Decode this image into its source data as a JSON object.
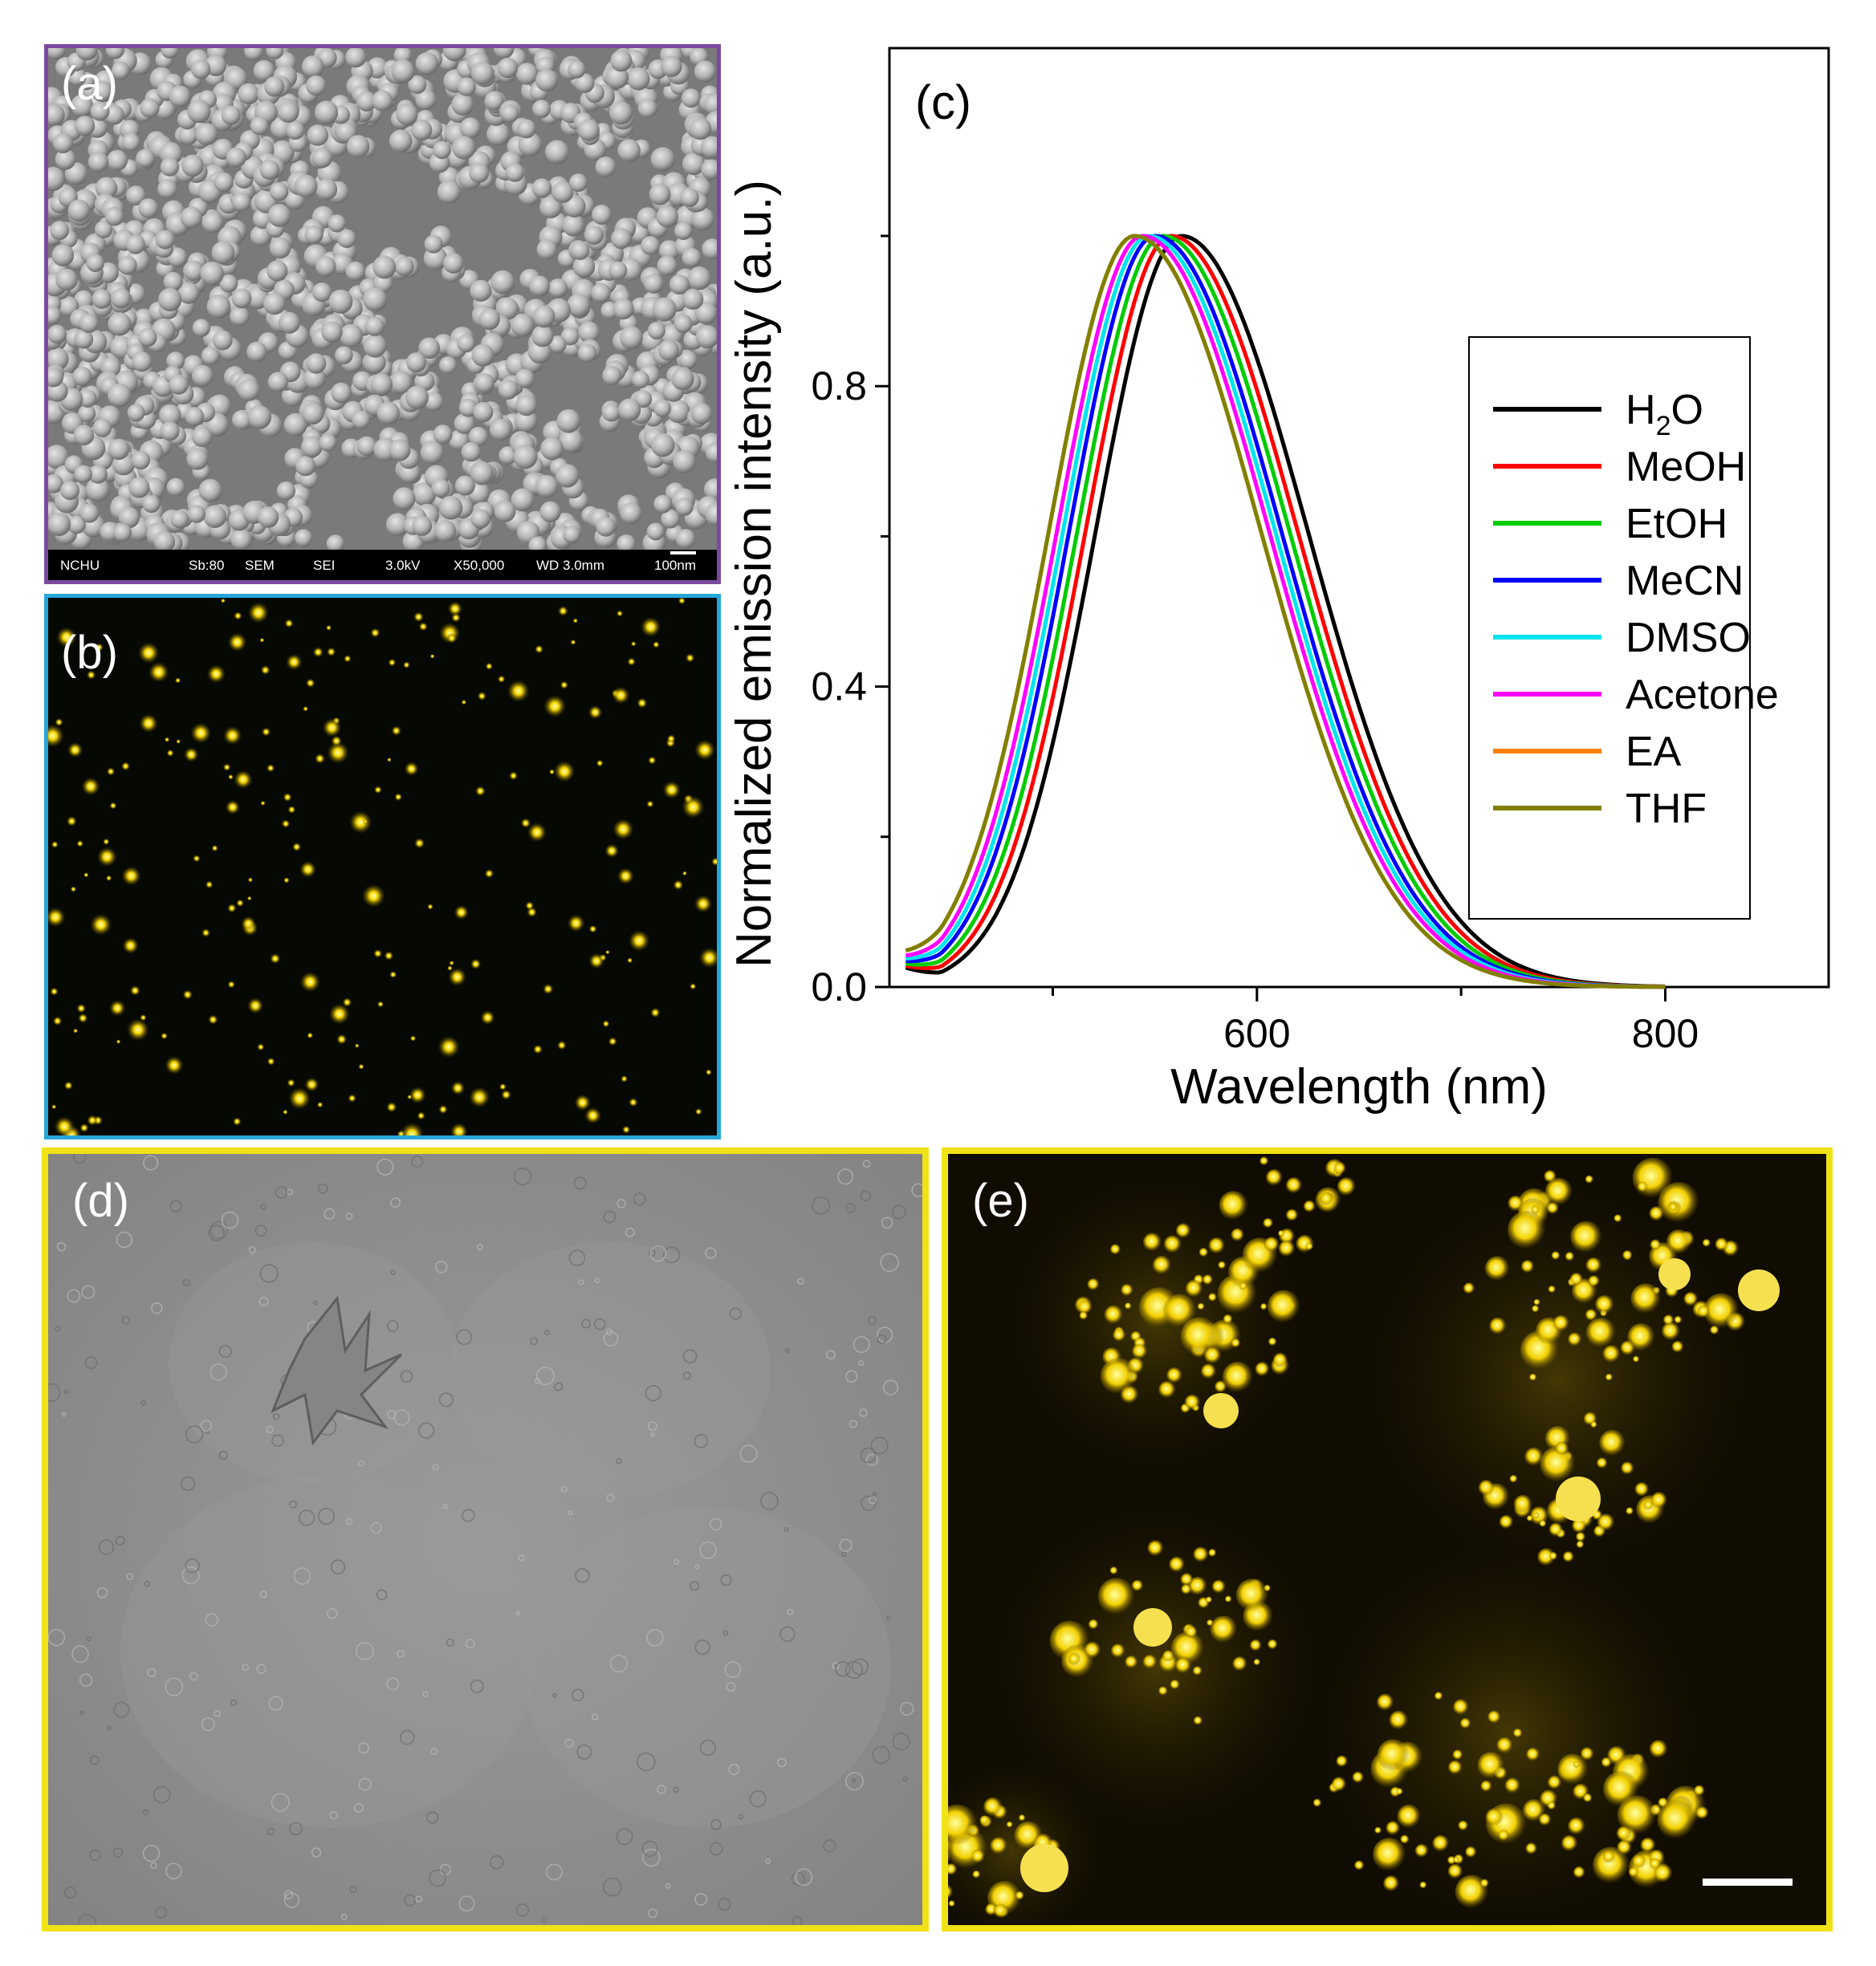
{
  "panels": {
    "a": {
      "label": "(a)",
      "sem_bar": {
        "lab": "NCHU",
        "sb": "Sb:80",
        "mode": "SEM",
        "detector": "SEI",
        "voltage": "3.0kV",
        "magnification": "X50,000",
        "wd": "WD 3.0mm",
        "scale": "100nm"
      }
    },
    "b": {
      "label": "(b)"
    },
    "c": {
      "label": "(c)"
    },
    "d": {
      "label": "(d)"
    },
    "e": {
      "label": "(e)"
    }
  },
  "colors": {
    "panel_a_border": "#7b4a9e",
    "panel_b_border": "#27a6d9",
    "panel_de_border": "#f0e215"
  },
  "chart_data": {
    "type": "line",
    "title": "",
    "xlabel": "Wavelength (nm)",
    "ylabel": "Normalized emission intensity (a.u.)",
    "xlim": [
      420,
      880
    ],
    "ylim": [
      0.0,
      1.0
    ],
    "xticks": [
      600,
      800
    ],
    "xtick_labels": [
      "600",
      "800"
    ],
    "yticks": [
      0.0,
      0.4,
      0.8
    ],
    "ytick_labels": [
      "0.0",
      "0.4",
      "0.8"
    ],
    "grid": false,
    "legend_position": "right",
    "series": [
      {
        "name": "H2O",
        "color": "#000000",
        "peak_nm": 563,
        "peak": 1.0
      },
      {
        "name": "MeOH",
        "color": "#ff0000",
        "peak_nm": 558,
        "peak": 1.0
      },
      {
        "name": "EtOH",
        "color": "#00cc00",
        "peak_nm": 554,
        "peak": 1.0
      },
      {
        "name": "MeCN",
        "color": "#0000ff",
        "peak_nm": 550,
        "peak": 1.0
      },
      {
        "name": "DMSO",
        "color": "#00e5ee",
        "peak_nm": 547,
        "peak": 1.0
      },
      {
        "name": "Acetone",
        "color": "#ff00ff",
        "peak_nm": 544,
        "peak": 1.0
      },
      {
        "name": "EA",
        "color": "#ff8000",
        "peak_nm": 540,
        "peak": 1.0
      },
      {
        "name": "THF",
        "color": "#808000",
        "peak_nm": 540,
        "peak": 1.0
      }
    ],
    "legend": [
      {
        "main": "H",
        "sub": "2",
        "rest": "O"
      },
      {
        "main": "MeOH",
        "sub": "",
        "rest": ""
      },
      {
        "main": "EtOH",
        "sub": "",
        "rest": ""
      },
      {
        "main": "MeCN",
        "sub": "",
        "rest": ""
      },
      {
        "main": "DMSO",
        "sub": "",
        "rest": ""
      },
      {
        "main": "Acetone",
        "sub": "",
        "rest": ""
      },
      {
        "main": "EA",
        "sub": "",
        "rest": ""
      },
      {
        "main": "THF",
        "sub": "",
        "rest": ""
      }
    ]
  }
}
